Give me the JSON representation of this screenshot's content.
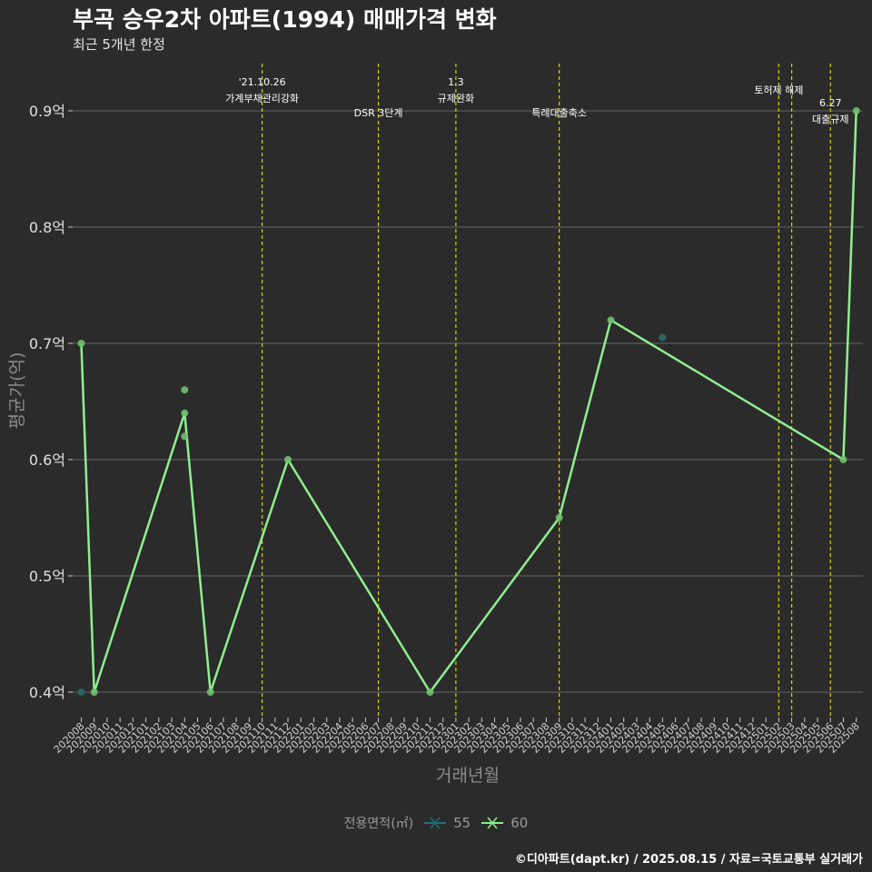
{
  "chart_data": {
    "type": "line",
    "title": "부곡 승우2차 아파트(1994) 매매가격 변화",
    "subtitle": "최근 5개년 한정",
    "xlabel": "거래년월",
    "ylabel": "평균가(억)",
    "ylim": [
      0.38,
      0.935
    ],
    "yticks": [
      0.4,
      0.5,
      0.6,
      0.7,
      0.8,
      0.9
    ],
    "ytick_labels": [
      "0.4억",
      "0.5억",
      "0.6억",
      "0.7억",
      "0.8억",
      "0.9억"
    ],
    "categories": [
      "202008",
      "202009",
      "202010",
      "202011",
      "202012",
      "202101",
      "202102",
      "202103",
      "202104",
      "202105",
      "202106",
      "202107",
      "202108",
      "202109",
      "202110",
      "202111",
      "202112",
      "202201",
      "202202",
      "202203",
      "202204",
      "202205",
      "202206",
      "202207",
      "202208",
      "202209",
      "202210",
      "202211",
      "202212",
      "202301",
      "202302",
      "202303",
      "202304",
      "202305",
      "202306",
      "202307",
      "202308",
      "202309",
      "202310",
      "202311",
      "202312",
      "202401",
      "202402",
      "202403",
      "202404",
      "202405",
      "202406",
      "202407",
      "202408",
      "202409",
      "202410",
      "202411",
      "202412",
      "202501",
      "202502",
      "202503",
      "202504",
      "202505",
      "202506",
      "202507",
      "202508"
    ],
    "grid": true,
    "legend_position": "bottom",
    "legend_title": "전용면적(㎡)",
    "series": [
      {
        "name": "55",
        "color": "#1f6f78",
        "points": [
          {
            "x": "202008",
            "y": 0.4
          },
          {
            "x": "202405",
            "y": 0.705
          }
        ]
      },
      {
        "name": "60",
        "color": "#90ee90",
        "points": [
          {
            "x": "202008",
            "y": 0.7
          },
          {
            "x": "202009",
            "y": 0.4
          },
          {
            "x": "202104",
            "y": 0.64
          },
          {
            "x": "202106",
            "y": 0.4
          },
          {
            "x": "202112",
            "y": 0.6
          },
          {
            "x": "202211",
            "y": 0.4
          },
          {
            "x": "202309",
            "y": 0.55
          },
          {
            "x": "202401",
            "y": 0.72
          },
          {
            "x": "202507",
            "y": 0.6
          },
          {
            "x": "202508",
            "y": 0.9
          }
        ],
        "extra_points": [
          {
            "x": "202104",
            "y": 0.66
          },
          {
            "x": "202104",
            "y": 0.62
          }
        ]
      }
    ],
    "annotations": [
      {
        "x": "202110",
        "lines": [
          "'21.10.26",
          "가계부채관리강화"
        ]
      },
      {
        "x": "202207",
        "lines": [
          "DSR 3단계"
        ]
      },
      {
        "x": "202301",
        "lines": [
          "1.3",
          "규제완화"
        ]
      },
      {
        "x": "202309",
        "lines": [
          "특례대출축소"
        ]
      },
      {
        "x": "202502",
        "lines": [
          "토허제 해제"
        ]
      },
      {
        "x": "202503",
        "lines": []
      },
      {
        "x": "202506",
        "lines": [
          "6.27",
          "대출규제"
        ]
      }
    ]
  },
  "footer": {
    "credit": "©디아파트(dapt.kr) / 2025.08.15 / 자료=국토교통부 실거래가"
  },
  "colors": {
    "background": "#2b2b2b",
    "grid": "#5a5a5a",
    "annotation_line": "#d4d400",
    "axis_text": "#cccccc"
  }
}
